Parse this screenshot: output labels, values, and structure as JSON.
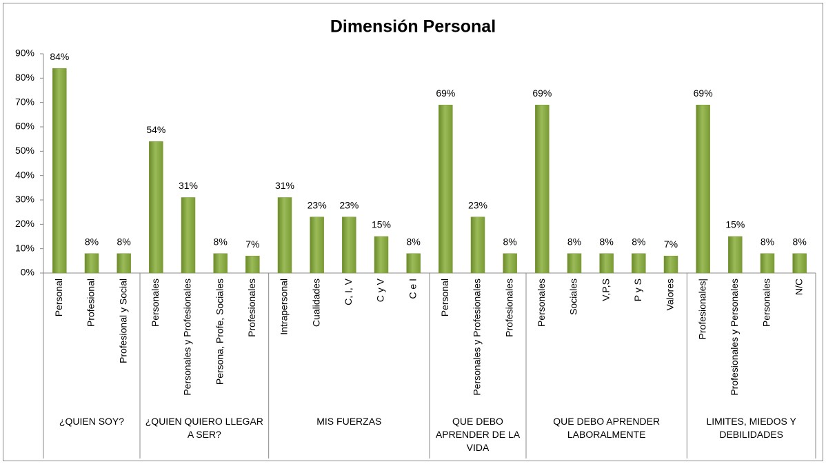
{
  "chart_data": {
    "type": "bar",
    "title": "Dimensión Personal",
    "color": "#9bbb59",
    "ylim": [
      0,
      90
    ],
    "yticks": [
      {
        "value": 0,
        "label": "0%"
      },
      {
        "value": 10,
        "label": "10%"
      },
      {
        "value": 20,
        "label": "20%"
      },
      {
        "value": 30,
        "label": "30%"
      },
      {
        "value": 40,
        "label": "40%"
      },
      {
        "value": 50,
        "label": "50%"
      },
      {
        "value": 60,
        "label": "60%"
      },
      {
        "value": 70,
        "label": "70%"
      },
      {
        "value": 80,
        "label": "80%"
      },
      {
        "value": 90,
        "label": "90%"
      }
    ],
    "groups": [
      {
        "name": "¿QUIEN SOY?",
        "categories": [
          "Personal",
          "Profesional",
          "Profesional y Social"
        ],
        "values": [
          84,
          8,
          8
        ],
        "value_labels": [
          "84%",
          "8%",
          "8%"
        ]
      },
      {
        "name": "¿QUIEN  QUIERO LLEGAR A SER?",
        "categories": [
          "Personales",
          "Personales y  Profesionales",
          "Persona, Profe, Sociales",
          "Profesionales"
        ],
        "values": [
          54,
          31,
          8,
          7
        ],
        "value_labels": [
          "54%",
          "31%",
          "8%",
          "7%"
        ]
      },
      {
        "name": "MIS FUERZAS",
        "categories": [
          "Intrapersonal",
          "Cualidades",
          "C, I, V",
          "C y V",
          "C e I"
        ],
        "values": [
          31,
          23,
          23,
          15,
          8
        ],
        "value_labels": [
          "31%",
          "23%",
          "23%",
          "15%",
          "8%"
        ]
      },
      {
        "name": "QUE DEBO APRENDER DE LA VIDA",
        "categories": [
          "Personal",
          "Personales y  Profesionales",
          "Profesionales"
        ],
        "values": [
          69,
          23,
          8
        ],
        "value_labels": [
          "69%",
          "23%",
          "8%"
        ]
      },
      {
        "name": "QUE DEBO APRENDER LABORALMENTE",
        "categories": [
          "Personales",
          "Sociales",
          "V,P,S",
          "P y S",
          "Valores"
        ],
        "values": [
          69,
          8,
          8,
          8,
          7
        ],
        "value_labels": [
          "69%",
          "8%",
          "8%",
          "8%",
          "7%"
        ]
      },
      {
        "name": "LIMITES, MIEDOS Y DEBILIDADES",
        "categories": [
          "Profesionales|",
          "Profesionales y Personales",
          "Personales",
          "N/C"
        ],
        "values": [
          69,
          15,
          8,
          8
        ],
        "value_labels": [
          "69%",
          "15%",
          "8%",
          "8%"
        ]
      }
    ]
  }
}
